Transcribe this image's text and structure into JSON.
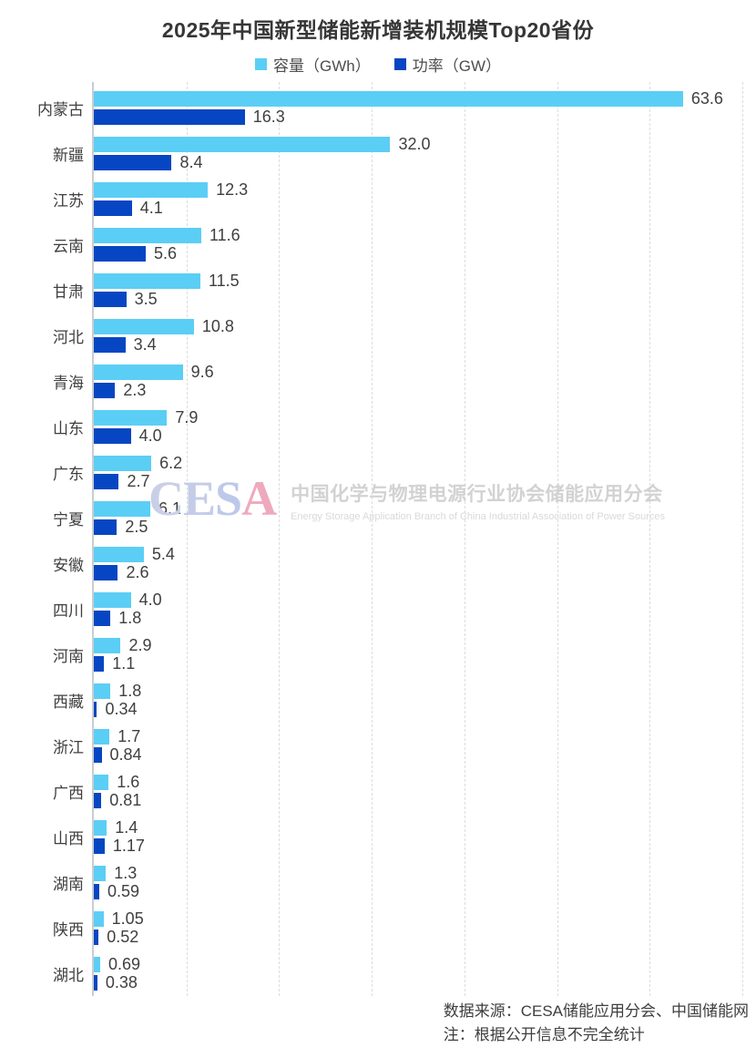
{
  "title": "2025年中国新型储能新增装机规模Top20省份",
  "legend": {
    "capacity_label": "容量（GWh）",
    "power_label": "功率（GW）"
  },
  "colors": {
    "capacity_bar": "#5BCEF5",
    "power_bar": "#0746C2",
    "grid": "#dcdcdc",
    "axis": "#c9cdd2",
    "text": "#3f3f3f"
  },
  "chart_data": {
    "type": "bar",
    "orientation": "horizontal",
    "title": "2025年中国新型储能新增装机规模Top20省份",
    "categories": [
      "内蒙古",
      "新疆",
      "江苏",
      "云南",
      "甘肃",
      "河北",
      "青海",
      "山东",
      "广东",
      "宁夏",
      "安徽",
      "四川",
      "河南",
      "西藏",
      "浙江",
      "广西",
      "山西",
      "湖南",
      "陕西",
      "湖北"
    ],
    "series": [
      {
        "name": "容量（GWh）",
        "values": [
          63.6,
          32.0,
          12.3,
          11.6,
          11.5,
          10.8,
          9.6,
          7.9,
          6.2,
          6.1,
          5.4,
          4.0,
          2.9,
          1.8,
          1.7,
          1.6,
          1.4,
          1.3,
          1.05,
          0.69
        ],
        "labels": [
          "63.6",
          "32.0",
          "12.3",
          "11.6",
          "11.5",
          "10.8",
          "9.6",
          "7.9",
          "6.2",
          "6.1",
          "5.4",
          "4.0",
          "2.9",
          "1.8",
          "1.7",
          "1.6",
          "1.4",
          "1.3",
          "1.05",
          "0.69"
        ]
      },
      {
        "name": "功率（GW）",
        "values": [
          16.3,
          8.4,
          4.1,
          5.6,
          3.5,
          3.4,
          2.3,
          4.0,
          2.7,
          2.5,
          2.6,
          1.8,
          1.1,
          0.34,
          0.84,
          0.81,
          1.17,
          0.59,
          0.52,
          0.38
        ],
        "labels": [
          "16.3",
          "8.4",
          "4.1",
          "5.6",
          "3.5",
          "3.4",
          "2.3",
          "4.0",
          "2.7",
          "2.5",
          "2.6",
          "1.8",
          "1.1",
          "0.34",
          "0.84",
          "0.81",
          "1.17",
          "0.59",
          "0.52",
          "0.38"
        ]
      }
    ],
    "xlim": [
      0,
      70
    ],
    "gridline_interval": 10,
    "grid": "dashed-vertical",
    "legend_position": "top",
    "value_labels": "outside-end"
  },
  "watermark": {
    "acronym": "CESA",
    "acronym_letter_colors": [
      "#c9cfe6",
      "#c4cce7",
      "#bdc9ea",
      "#efa9bd"
    ],
    "cn": "中国化学与物理电源行业协会储能应用分会",
    "en": "Energy Storage Application Branch of China Industrial Association of Power Sources"
  },
  "footer": {
    "source": "数据来源：CESA储能应用分会、中国储能网",
    "note": "注：根据公开信息不完全统计"
  }
}
